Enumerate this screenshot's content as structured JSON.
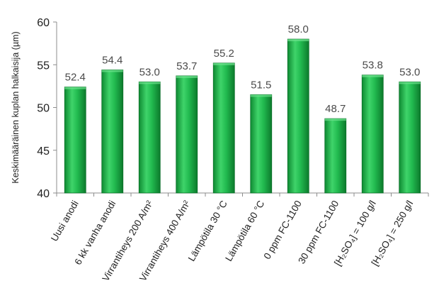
{
  "chart_data": {
    "type": "bar",
    "title": "",
    "xlabel": "",
    "ylabel": "Keskimääräinen kuplan halkaisija (µm)",
    "ylim": [
      40,
      60
    ],
    "yticks": [
      40,
      45,
      50,
      55,
      60
    ],
    "grid": false,
    "bar_color": "#1db34a",
    "categories": [
      "Uusi anodi",
      "6 kk vanha anodi",
      "Virrantiheys 200 A/m²",
      "Virrantiheys 400 A/m²",
      "Lämpötila 30 °C",
      "Lämpötila 60 °C",
      "0 ppm FC-1100",
      "30 ppm FC-1100",
      "[H₂SO₄] = 100 g/l",
      "[H₂SO₄] = 250 g/l"
    ],
    "values": [
      52.4,
      54.4,
      53.0,
      53.7,
      55.2,
      51.5,
      58.0,
      48.7,
      53.8,
      53.0
    ],
    "data_labels": [
      "52.4",
      "54.4",
      "53.0",
      "53.7",
      "55.2",
      "51.5",
      "58.0",
      "48.7",
      "53.8",
      "53.0"
    ]
  }
}
